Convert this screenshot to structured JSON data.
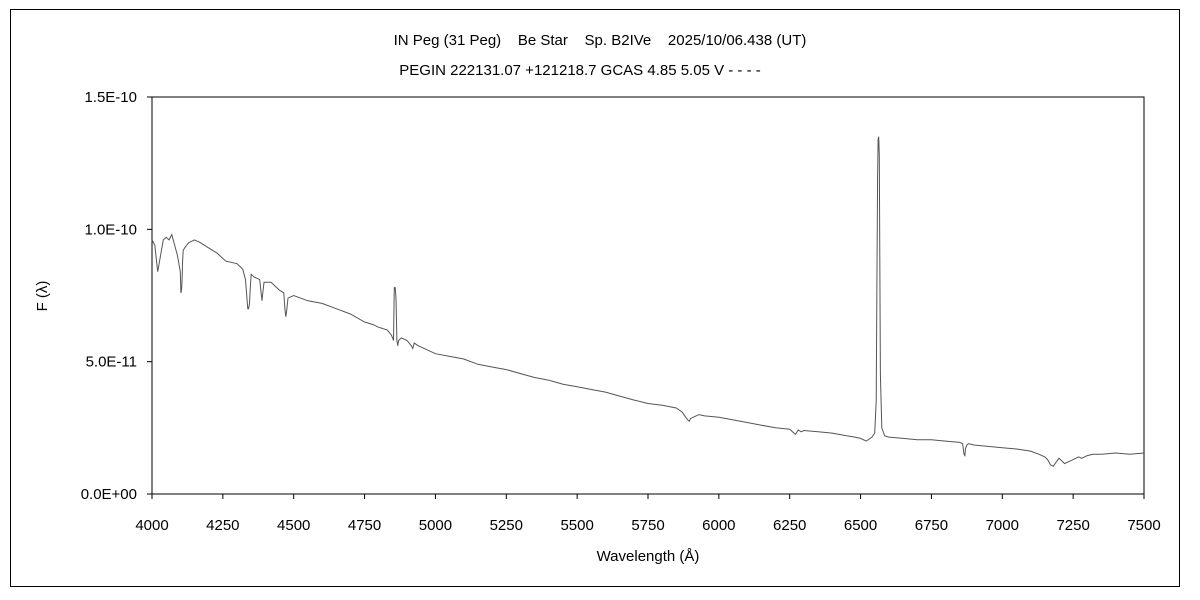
{
  "chart_data": {
    "type": "line",
    "title": "IN Peg (31 Peg)    Be Star    Sp. B2IVe    2025/10/06.438 (UT)",
    "subtitle": "PEGIN 222131.07 +121218.7 GCAS 4.85 5.05 V - - - -",
    "xlabel": "Wavelength (Å)",
    "ylabel": "F (λ)",
    "xlim": [
      4000,
      7500
    ],
    "ylim": [
      0,
      1.5e-10
    ],
    "xticks": [
      4000,
      4250,
      4500,
      4750,
      5000,
      5250,
      5500,
      5750,
      6000,
      6250,
      6500,
      6750,
      7000,
      7250,
      7500
    ],
    "xtick_labels": [
      "4000",
      "4250",
      "4500",
      "4750",
      "5000",
      "5250",
      "5500",
      "5750",
      "6000",
      "6250",
      "6500",
      "6750",
      "7000",
      "7250",
      "7500"
    ],
    "yticks": [
      0,
      5e-11,
      1e-10,
      1.5e-10
    ],
    "ytick_labels": [
      "0.0E+00",
      "5.0E-11",
      "1.0E-10",
      "1.5E-10"
    ],
    "grid": false,
    "legend": "none",
    "line_color": "#555555",
    "series": [
      {
        "x": [
          4000,
          4010,
          4020,
          4030,
          4040,
          4050,
          4060,
          4070,
          4080,
          4090,
          4100,
          4102,
          4104,
          4106,
          4108,
          4110,
          4115,
          4130,
          4150,
          4170,
          4200,
          4230,
          4260,
          4300,
          4320,
          4330,
          4335,
          4338,
          4341,
          4344,
          4347,
          4350,
          4360,
          4380,
          4385,
          4388,
          4390,
          4395,
          4420,
          4450,
          4465,
          4469,
          4472,
          4475,
          4480,
          4500,
          4550,
          4600,
          4650,
          4700,
          4750,
          4780,
          4800,
          4830,
          4845,
          4852,
          4855,
          4858,
          4861,
          4864,
          4867,
          4870,
          4880,
          4900,
          4915,
          4920,
          4925,
          4940,
          4960,
          5000,
          5050,
          5100,
          5150,
          5200,
          5250,
          5300,
          5350,
          5400,
          5450,
          5500,
          5550,
          5600,
          5650,
          5700,
          5750,
          5800,
          5850,
          5870,
          5880,
          5890,
          5895,
          5900,
          5910,
          5930,
          5950,
          6000,
          6050,
          6100,
          6150,
          6200,
          6250,
          6270,
          6280,
          6290,
          6300,
          6350,
          6400,
          6450,
          6480,
          6500,
          6520,
          6540,
          6550,
          6555,
          6558,
          6560,
          6562,
          6564,
          6566,
          6568,
          6570,
          6575,
          6585,
          6600,
          6650,
          6700,
          6750,
          6800,
          6850,
          6860,
          6865,
          6868,
          6870,
          6875,
          6880,
          6900,
          6950,
          7000,
          7050,
          7100,
          7130,
          7150,
          7160,
          7170,
          7180,
          7190,
          7200,
          7210,
          7220,
          7230,
          7240,
          7250,
          7270,
          7280,
          7300,
          7320,
          7350,
          7400,
          7450,
          7500
        ],
        "y": [
          9.6e-11,
          9.4e-11,
          8.4e-11,
          9e-11,
          9.6e-11,
          9.7e-11,
          9.6e-11,
          9.8e-11,
          9.4e-11,
          9e-11,
          8.4e-11,
          7.6e-11,
          7.7e-11,
          8e-11,
          8.8e-11,
          9.2e-11,
          9.3e-11,
          9.5e-11,
          9.6e-11,
          9.5e-11,
          9.3e-11,
          9.1e-11,
          8.8e-11,
          8.7e-11,
          8.5e-11,
          8.1e-11,
          7.4e-11,
          7e-11,
          7e-11,
          7.2e-11,
          7.8e-11,
          8.3e-11,
          8.2e-11,
          8.1e-11,
          7.6e-11,
          7.3e-11,
          7.5e-11,
          8e-11,
          8e-11,
          7.7e-11,
          7.6e-11,
          7e-11,
          6.7e-11,
          6.9e-11,
          7.4e-11,
          7.5e-11,
          7.3e-11,
          7.2e-11,
          7e-11,
          6.8e-11,
          6.5e-11,
          6.4e-11,
          6.3e-11,
          6.2e-11,
          6e-11,
          5.8e-11,
          7.8e-11,
          7.8e-11,
          7.4e-11,
          5.8e-11,
          5.6e-11,
          5.8e-11,
          5.9e-11,
          5.8e-11,
          5.6e-11,
          5.5e-11,
          5.7e-11,
          5.6e-11,
          5.5e-11,
          5.3e-11,
          5.2e-11,
          5.1e-11,
          4.9e-11,
          4.8e-11,
          4.7e-11,
          4.55e-11,
          4.4e-11,
          4.3e-11,
          4.15e-11,
          4.05e-11,
          3.95e-11,
          3.85e-11,
          3.7e-11,
          3.55e-11,
          3.42e-11,
          3.35e-11,
          3.25e-11,
          3.1e-11,
          2.95e-11,
          2.8e-11,
          2.75e-11,
          2.85e-11,
          2.9e-11,
          3e-11,
          2.95e-11,
          2.9e-11,
          2.8e-11,
          2.7e-11,
          2.6e-11,
          2.5e-11,
          2.45e-11,
          2.25e-11,
          2.42e-11,
          2.35e-11,
          2.4e-11,
          2.35e-11,
          2.3e-11,
          2.2e-11,
          2.15e-11,
          2.1e-11,
          2e-11,
          2.15e-11,
          2.3e-11,
          3.5e-11,
          8.5e-11,
          1.2e-10,
          1.34e-10,
          1.35e-10,
          1.28e-10,
          9e-11,
          4.5e-11,
          2.5e-11,
          2.2e-11,
          2.15e-11,
          2.1e-11,
          2.05e-11,
          2.05e-11,
          2e-11,
          1.95e-11,
          1.9e-11,
          1.5e-11,
          1.45e-11,
          1.7e-11,
          1.85e-11,
          1.9e-11,
          1.85e-11,
          1.8e-11,
          1.75e-11,
          1.7e-11,
          1.62e-11,
          1.5e-11,
          1.4e-11,
          1.3e-11,
          1.1e-11,
          1.05e-11,
          1.2e-11,
          1.35e-11,
          1.25e-11,
          1.15e-11,
          1.2e-11,
          1.25e-11,
          1.3e-11,
          1.4e-11,
          1.35e-11,
          1.45e-11,
          1.5e-11,
          1.5e-11,
          1.55e-11,
          1.5e-11,
          1.55e-11
        ]
      }
    ]
  }
}
